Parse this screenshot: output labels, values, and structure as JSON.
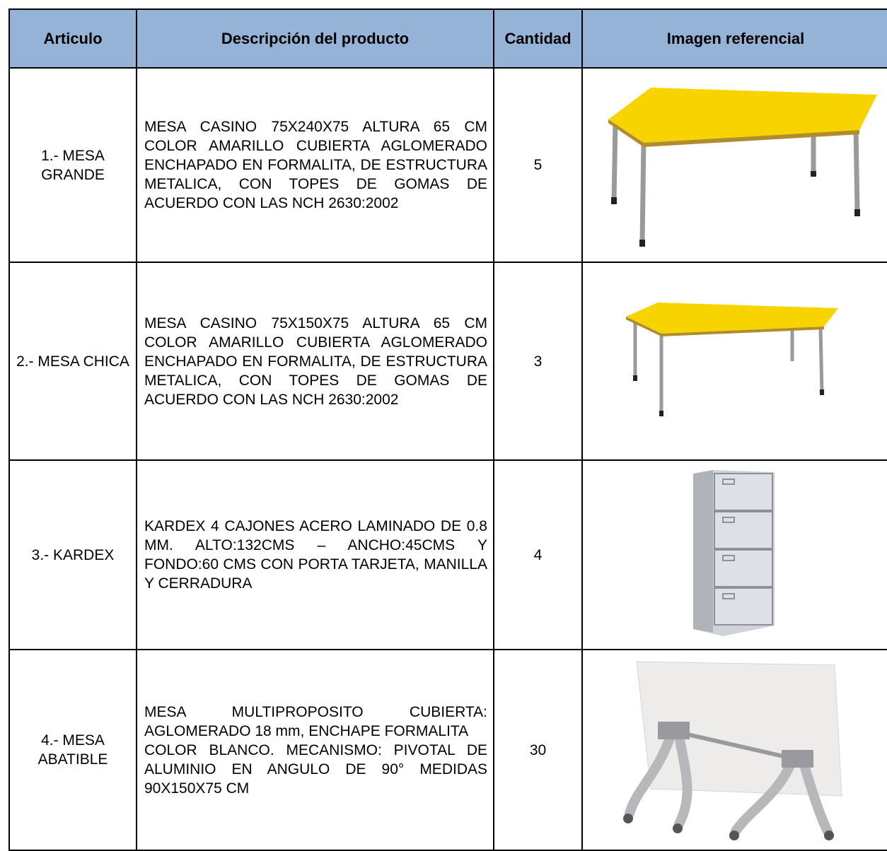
{
  "table": {
    "headers": [
      "Articulo",
      "Descripción del producto",
      "Cantidad",
      "Imagen referencial"
    ],
    "rows": [
      [
        "1.- MESA GRANDE",
        "MESA CASINO 75X240X75 ALTURA 65 CM COLOR AMARILLO CUBIERTA AGLOMERADO ENCHAPADO EN FORMALITA, DE ESTRUCTURA METALICA, CON TOPES DE GOMAS DE ACUERDO CON LAS NCH 2630:2002",
        5
      ],
      [
        "2.- MESA CHICA",
        "MESA CASINO 75X150X75 ALTURA 65 CM COLOR AMARILLO CUBIERTA AGLOMERADO ENCHAPADO EN FORMALITA, DE ESTRUCTURA METALICA, CON TOPES DE GOMAS DE ACUERDO CON LAS NCH 2630:2002",
        3
      ],
      [
        "3.- KARDEX",
        "KARDEX 4 CAJONES ACERO LAMINADO DE 0.8 MM. ALTO:132CMS – ANCHO:45CMS Y FONDO:60 CMS CON PORTA TARJETA, MANILLA Y CERRADURA",
        4
      ],
      [
        "4.- MESA ABATIBLE",
        "MESA MULTIPROPOSITO CUBIERTA: AGLOMERADO 18 mm, ENCHAPE FORMALITA\nCOLOR BLANCO. MECANISMO: PIVOTAL DE ALUMINIO EN ANGULO DE 90° MEDIDAS 90X150X75 CM",
        30
      ]
    ]
  }
}
